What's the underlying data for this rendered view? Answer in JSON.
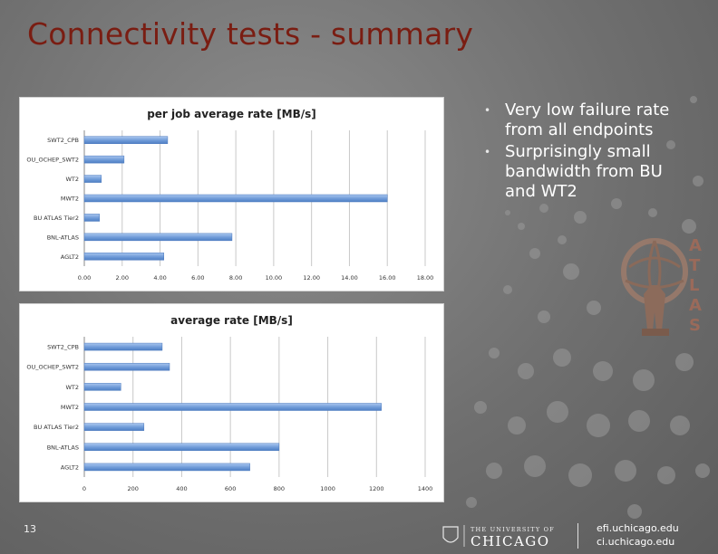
{
  "slide": {
    "title": "Connectivity tests - summary",
    "page_number": "13"
  },
  "bullets": [
    "Very low failure rate from all endpoints",
    "Surprisingly small bandwidth from BU and WT2"
  ],
  "colors": {
    "title": "#7a1d12",
    "bar": "#6f9bd8",
    "background": "#707070"
  },
  "chart_data": [
    {
      "type": "bar",
      "orientation": "horizontal",
      "title": "per job average rate [MB/s]",
      "categories": [
        "SWT2_CPB",
        "OU_OCHEP_SWT2",
        "WT2",
        "MWT2",
        "BU ATLAS Tier2",
        "BNL-ATLAS",
        "AGLT2"
      ],
      "values": [
        4.4,
        2.1,
        0.9,
        16.0,
        0.8,
        7.8,
        4.2
      ],
      "xlim": [
        0,
        18
      ],
      "xticks": [
        "0.00",
        "2.00",
        "4.00",
        "6.00",
        "8.00",
        "10.00",
        "12.00",
        "14.00",
        "16.00",
        "18.00"
      ],
      "grid": true
    },
    {
      "type": "bar",
      "orientation": "horizontal",
      "title": "average rate [MB/s]",
      "categories": [
        "SWT2_CPB",
        "OU_OCHEP_SWT2",
        "WT2",
        "MWT2",
        "BU ATLAS Tier2",
        "BNL-ATLAS",
        "AGLT2"
      ],
      "values": [
        320,
        350,
        150,
        1220,
        245,
        800,
        680
      ],
      "xlim": [
        0,
        1400
      ],
      "xticks": [
        "0",
        "200",
        "400",
        "600",
        "800",
        "1000",
        "1200",
        "1400"
      ],
      "grid": true
    }
  ],
  "footer": {
    "university_line1": "THE UNIVERSITY OF",
    "university_line2": "CHICAGO",
    "link1": "efi.uchicago.edu",
    "link2": "ci.uchicago.edu"
  },
  "atlas_logo_letters": [
    "A",
    "T",
    "L",
    "A",
    "S"
  ]
}
